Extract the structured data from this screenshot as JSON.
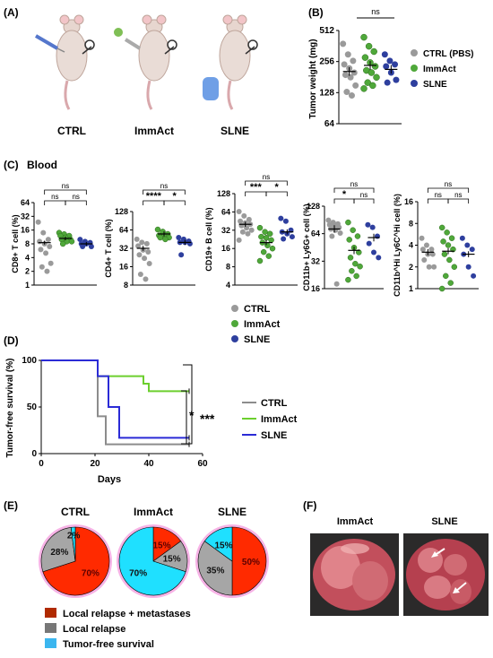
{
  "panels": {
    "a": {
      "letter": "(A)",
      "groups": [
        "CTRL",
        "ImmAct",
        "SLNE"
      ]
    },
    "b": {
      "letter": "(B)",
      "ylabel": "Tumor weight (mg)",
      "ticks": [
        "512",
        "256",
        "128",
        "64"
      ],
      "sig": "ns",
      "legend": [
        "CTRL (PBS)",
        "ImmAct",
        "SLNE"
      ]
    },
    "c": {
      "letter": "(C)",
      "title": "Blood",
      "legend": [
        "CTRL",
        "ImmAct",
        "SLNE"
      ]
    },
    "d": {
      "letter": "(D)",
      "ylabel": "Tumor-free survival (%)",
      "xlabel": "Days",
      "yticks": [
        "100",
        "50",
        "0"
      ],
      "xticks": [
        "0",
        "20",
        "40",
        "60"
      ],
      "legend": [
        "CTRL",
        "ImmAct",
        "SLNE"
      ],
      "sig_short": "*",
      "sig_long": "***"
    },
    "e": {
      "letter": "(E)",
      "titles": [
        "CTRL",
        "ImmAct",
        "SLNE"
      ],
      "legend": [
        "Local relapse + metastases",
        "Local relapse",
        "Tumor-free survival"
      ]
    },
    "f": {
      "letter": "(F)",
      "labels": [
        "ImmAct",
        "SLNE"
      ]
    }
  },
  "colors": {
    "ctrl": "#9a9a9a",
    "immact": "#4fa83a",
    "slne": "#2e3f9e",
    "survival_ctrl": "#8c8c8c",
    "survival_immact": "#6ccf2e",
    "survival_slne": "#2b2bd6",
    "pie_red": "#ff2a00",
    "pie_gray": "#a6a6a6",
    "pie_cyan": "#1fe0ff"
  },
  "chart_data": [
    {
      "id": "B",
      "type": "scatter",
      "title": "",
      "ylabel": "Tumor weight (mg)",
      "yscale": "log2",
      "ylim": [
        64,
        512
      ],
      "categories": [
        "CTRL (PBS)",
        "ImmAct",
        "SLNE"
      ],
      "series": [
        {
          "name": "CTRL (PBS)",
          "values": [
            380,
            300,
            260,
            240,
            220,
            200,
            190,
            180,
            150,
            130,
            120
          ]
        },
        {
          "name": "ImmAct",
          "values": [
            440,
            360,
            320,
            280,
            250,
            230,
            210,
            200,
            180,
            160,
            150,
            140
          ]
        },
        {
          "name": "SLNE",
          "values": [
            300,
            260,
            240,
            230,
            200,
            170,
            160
          ]
        }
      ],
      "means": [
        205,
        235,
        215
      ],
      "annotation": "ns"
    },
    {
      "id": "C1",
      "type": "scatter",
      "ylabel": "CD8+ T cell (%)",
      "yscale": "log2",
      "ylim": [
        1,
        64
      ],
      "ticks": [
        1,
        2,
        4,
        8,
        16,
        32,
        64
      ],
      "series": [
        {
          "name": "CTRL",
          "values": [
            24,
            14,
            10,
            9,
            8,
            7,
            6,
            5,
            3,
            2.5,
            2
          ]
        },
        {
          "name": "ImmAct",
          "values": [
            14,
            13,
            12,
            12,
            11,
            10,
            10,
            9,
            9,
            8
          ]
        },
        {
          "name": "SLNE",
          "values": [
            10,
            9,
            8.5,
            8,
            8,
            7,
            7
          ]
        }
      ],
      "means": [
        8.5,
        10.5,
        8
      ],
      "annotations": [
        "ns",
        "ns",
        "ns"
      ]
    },
    {
      "id": "C2",
      "type": "scatter",
      "ylabel": "CD4+ T cell (%)",
      "yscale": "log2",
      "ylim": [
        8,
        128
      ],
      "ticks": [
        8,
        16,
        32,
        64,
        128
      ],
      "series": [
        {
          "name": "CTRL",
          "values": [
            45,
            40,
            38,
            35,
            30,
            28,
            25,
            22,
            18,
            12,
            10
          ]
        },
        {
          "name": "ImmAct",
          "values": [
            65,
            60,
            55,
            52,
            50,
            48,
            48,
            45
          ]
        },
        {
          "name": "SLNE",
          "values": [
            48,
            45,
            42,
            40,
            40,
            38,
            25
          ]
        }
      ],
      "means": [
        32,
        55,
        40
      ],
      "annotations": [
        "ns",
        "****",
        "*"
      ]
    },
    {
      "id": "C3",
      "type": "scatter",
      "ylabel": "CD19+ B cell (%)",
      "yscale": "log2",
      "ylim": [
        4,
        128
      ],
      "ticks": [
        4,
        8,
        16,
        32,
        64,
        128
      ],
      "series": [
        {
          "name": "CTRL",
          "values": [
            65,
            55,
            48,
            45,
            42,
            40,
            38,
            35,
            32,
            30,
            28,
            22
          ]
        },
        {
          "name": "ImmAct",
          "values": [
            35,
            30,
            28,
            25,
            24,
            22,
            20,
            18,
            16,
            14,
            12,
            10
          ]
        },
        {
          "name": "SLNE",
          "values": [
            50,
            45,
            32,
            30,
            28,
            25,
            23
          ]
        }
      ],
      "means": [
        40,
        20,
        30
      ],
      "annotations": [
        "ns",
        "***",
        "*"
      ]
    },
    {
      "id": "C4",
      "type": "scatter",
      "ylabel": "CD11b+ Ly6G+ cell (%)",
      "yscale": "log2",
      "ylim": [
        16,
        128
      ],
      "ticks": [
        16,
        32,
        64,
        128
      ],
      "series": [
        {
          "name": "CTRL",
          "values": [
            90,
            85,
            82,
            80,
            78,
            75,
            72,
            70,
            65,
            60,
            18
          ]
        },
        {
          "name": "ImmAct",
          "values": [
            85,
            70,
            60,
            55,
            45,
            40,
            35,
            30,
            28,
            25,
            22,
            20
          ]
        },
        {
          "name": "SLNE",
          "values": [
            80,
            75,
            60,
            50,
            40,
            35
          ]
        }
      ],
      "means": [
        72,
        42,
        58
      ],
      "annotations": [
        "ns",
        "*",
        "ns"
      ]
    },
    {
      "id": "C5",
      "type": "scatter",
      "ylabel": "CD11b^Hi Ly6C^Hi cell (%)",
      "yscale": "log2",
      "ylim": [
        1,
        16
      ],
      "ticks": [
        1,
        2,
        4,
        8,
        16
      ],
      "series": [
        {
          "name": "CTRL",
          "values": [
            5,
            4,
            3.5,
            3.5,
            3,
            3,
            2.5,
            2,
            2
          ]
        },
        {
          "name": "ImmAct",
          "values": [
            7,
            6,
            5,
            4.5,
            4,
            3.5,
            3,
            2.5,
            2,
            1.5,
            1.2,
            1
          ]
        },
        {
          "name": "SLNE",
          "values": [
            5,
            4,
            3.5,
            3,
            2,
            1.5
          ]
        }
      ],
      "means": [
        3.2,
        3.3,
        3
      ],
      "annotations": [
        "ns",
        "ns",
        "ns"
      ]
    },
    {
      "id": "D",
      "type": "line",
      "xlabel": "Days",
      "ylabel": "Tumor-free survival (%)",
      "xlim": [
        0,
        60
      ],
      "ylim": [
        0,
        100
      ],
      "series": [
        {
          "name": "CTRL",
          "steps": [
            [
              0,
              100
            ],
            [
              21,
              100
            ],
            [
              21,
              40
            ],
            [
              24,
              40
            ],
            [
              24,
              10
            ],
            [
              55,
              10
            ]
          ]
        },
        {
          "name": "ImmAct",
          "steps": [
            [
              0,
              100
            ],
            [
              21,
              100
            ],
            [
              21,
              83
            ],
            [
              38,
              83
            ],
            [
              38,
              75
            ],
            [
              40,
              75
            ],
            [
              40,
              67
            ],
            [
              55,
              67
            ]
          ]
        },
        {
          "name": "SLNE",
          "steps": [
            [
              0,
              100
            ],
            [
              21,
              100
            ],
            [
              21,
              83
            ],
            [
              25,
              83
            ],
            [
              25,
              50
            ],
            [
              29,
              50
            ],
            [
              29,
              17
            ],
            [
              55,
              17
            ]
          ]
        }
      ],
      "annotations": [
        "*",
        "***"
      ]
    },
    {
      "id": "E",
      "type": "pie",
      "categories": [
        "Local relapse + metastases",
        "Local relapse",
        "Tumor-free survival"
      ],
      "pies": [
        {
          "name": "CTRL",
          "values": [
            70,
            28,
            2
          ],
          "labels": [
            "70%",
            "28%",
            "2%"
          ]
        },
        {
          "name": "ImmAct",
          "values": [
            15,
            15,
            70
          ],
          "labels": [
            "15%",
            "15%",
            "70%"
          ]
        },
        {
          "name": "SLNE",
          "values": [
            50,
            35,
            15
          ],
          "labels": [
            "50%",
            "35%",
            "15%"
          ]
        }
      ]
    }
  ]
}
